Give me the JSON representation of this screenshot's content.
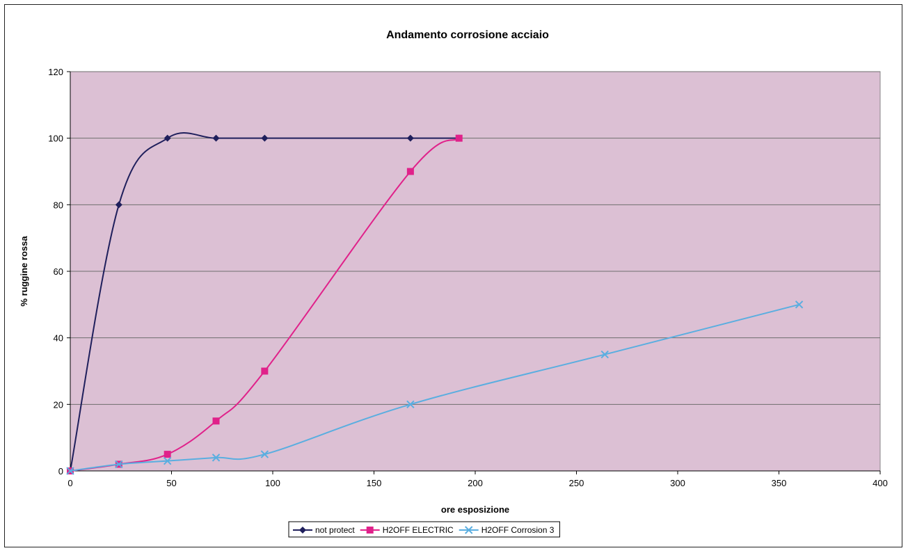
{
  "chart_data": {
    "type": "line",
    "title": "Andamento corrosione acciaio",
    "xlabel": "ore esposizione",
    "ylabel": "% ruggine rossa",
    "xlim": [
      0,
      400
    ],
    "ylim": [
      0,
      120
    ],
    "xticks": [
      0,
      50,
      100,
      150,
      200,
      250,
      300,
      350,
      400
    ],
    "yticks": [
      0,
      20,
      40,
      60,
      80,
      100,
      120
    ],
    "grid": "horizontal",
    "legend_position": "bottom",
    "plot_background": "#dcc0d4",
    "series": [
      {
        "name": "not protect",
        "color": "#1f1f5c",
        "marker": "diamond",
        "x": [
          0,
          24,
          48,
          72,
          96,
          168,
          192
        ],
        "y": [
          0,
          80,
          100,
          100,
          100,
          100,
          100
        ]
      },
      {
        "name": "H2OFF ELECTRIC",
        "color": "#e0218a",
        "marker": "square",
        "x": [
          0,
          24,
          48,
          72,
          96,
          168,
          192
        ],
        "y": [
          0,
          2,
          5,
          15,
          30,
          90,
          100
        ]
      },
      {
        "name": "H2OFF Corrosion 3",
        "color": "#5aaee0",
        "marker": "x",
        "x": [
          0,
          24,
          48,
          72,
          96,
          168,
          264,
          360
        ],
        "y": [
          0,
          2,
          3,
          4,
          5,
          20,
          35,
          50
        ]
      }
    ]
  }
}
